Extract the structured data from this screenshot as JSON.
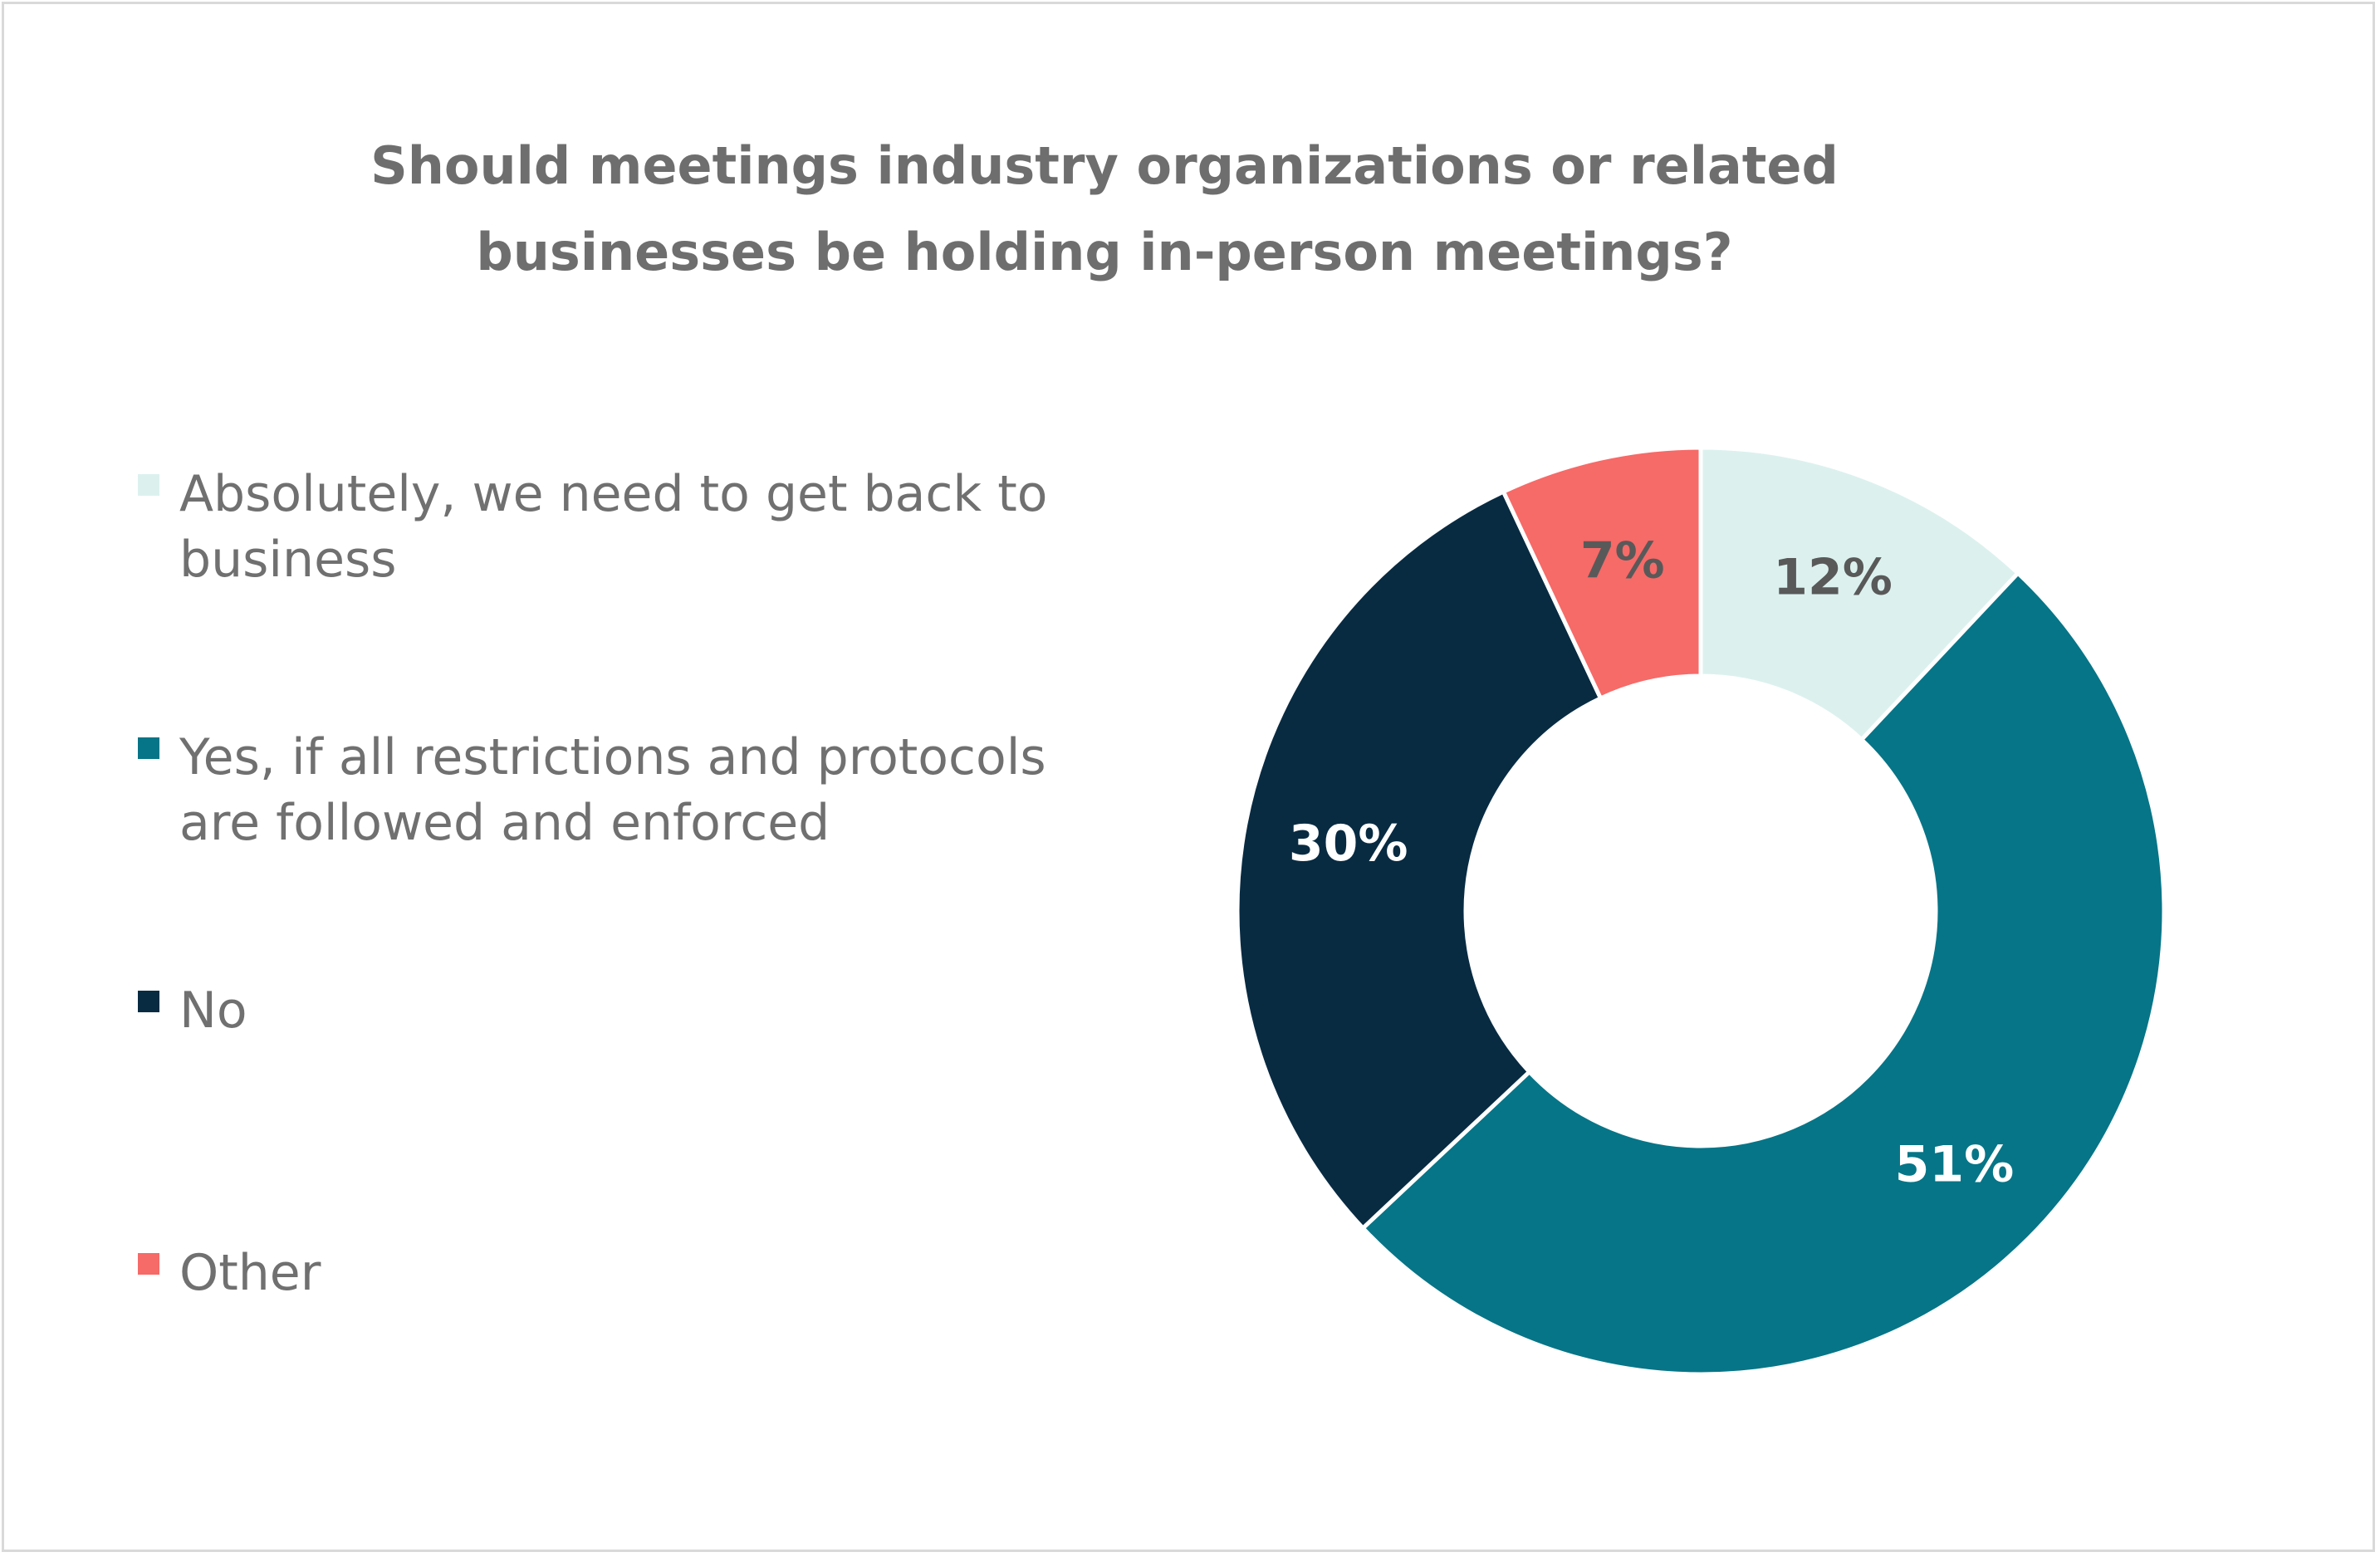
{
  "title_lines": [
    "Should meetings industry organizations or related",
    "businesses be holding in-person meetings?"
  ],
  "legend": [
    {
      "label_lines": [
        "Absolutely, we need to get back to",
        "business"
      ],
      "color": "#dcf1ee"
    },
    {
      "label_lines": [
        "Yes, if all restrictions and protocols",
        "are followed and enforced"
      ],
      "color": "#067587"
    },
    {
      "label_lines": [
        "No"
      ],
      "color": "#082b42"
    },
    {
      "label_lines": [
        "Other"
      ],
      "color": "#f66a68"
    }
  ],
  "chart_data": {
    "type": "pie",
    "subtype": "donut",
    "title": "Should meetings industry organizations or related businesses be holding in-person meetings?",
    "categories": [
      "Absolutely, we need to get back to business",
      "Yes, if all restrictions and protocols are followed and enforced",
      "No",
      "Other"
    ],
    "values": [
      12,
      51,
      30,
      7
    ],
    "value_labels": [
      "12%",
      "51%",
      "30%",
      "7%"
    ],
    "colors": [
      "#dcf1ee",
      "#067587",
      "#082b42",
      "#f66a68"
    ],
    "label_colors": [
      "#595959",
      "#ffffff",
      "#ffffff",
      "#595959"
    ],
    "legend_position": "left"
  }
}
